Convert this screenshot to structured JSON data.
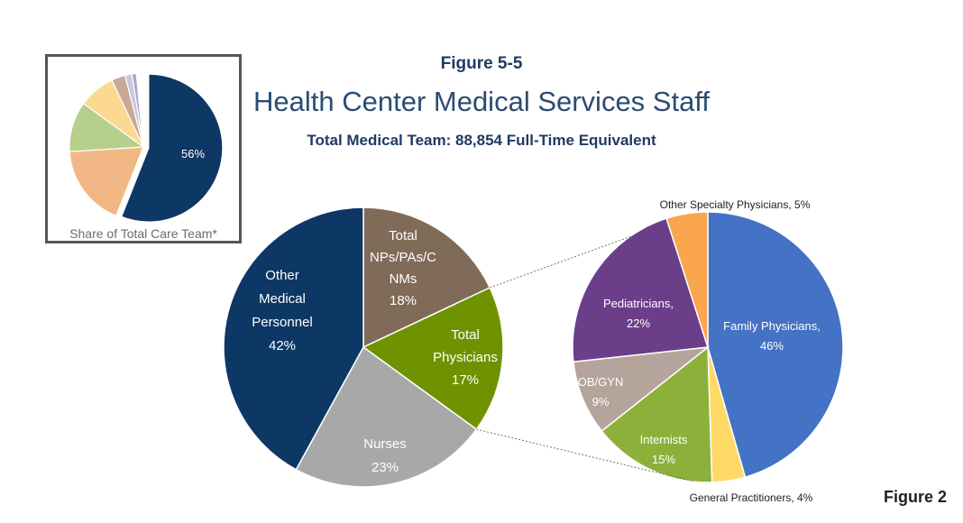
{
  "header": {
    "figure_label": "Figure 5-5",
    "title": "Health Center Medical Services Staff",
    "subtitle": "Total Medical Team: 88,854 Full-Time Equivalent"
  },
  "corner_label": "Figure 2",
  "chart_data": [
    {
      "type": "pie",
      "name": "inset",
      "caption": "Share of Total Care Team*",
      "slices": [
        {
          "value": 56,
          "label": "56%",
          "color": "#0d3764"
        },
        {
          "value": 18,
          "label": "",
          "color": "#f1b885"
        },
        {
          "value": 11,
          "label": "",
          "color": "#b6cf8c"
        },
        {
          "value": 8,
          "label": "",
          "color": "#fbd991"
        },
        {
          "value": 3,
          "label": "",
          "color": "#c9a896"
        },
        {
          "value": 1.5,
          "label": "",
          "color": "#c8c8d8"
        },
        {
          "value": 1,
          "label": "",
          "color": "#a9a9c9"
        },
        {
          "value": 1.5,
          "label": "",
          "color": "#ffffff"
        }
      ]
    },
    {
      "type": "pie",
      "name": "total-medical-team",
      "slices": [
        {
          "label": "Total NPs/PAs/CNMs",
          "lines": [
            "Total",
            "NPs/PAs/C",
            "NMs",
            "18%"
          ],
          "value": 18,
          "color": "#806a58"
        },
        {
          "label": "Total Physicians",
          "lines": [
            "Total",
            "Physicians",
            "17%"
          ],
          "value": 17,
          "color": "#6f9300"
        },
        {
          "label": "Nurses",
          "lines": [
            "Nurses",
            "23%"
          ],
          "value": 23,
          "color": "#a8a8a8"
        },
        {
          "label": "Other Medical Personnel",
          "lines": [
            "Other",
            "Medical",
            "Personnel",
            "42%"
          ],
          "value": 42,
          "color": "#0d3764"
        }
      ]
    },
    {
      "type": "pie",
      "name": "physicians-breakdown",
      "slices": [
        {
          "label": "Family Physicians, 46%",
          "lines": [
            "Family Physicians,",
            "46%"
          ],
          "value": 46,
          "color": "#4472c4"
        },
        {
          "label": "General Practitioners, 4%",
          "lines": [
            "General Practitioners, 4%"
          ],
          "value": 4,
          "color": "#ffd966"
        },
        {
          "label": "Internists",
          "lines": [
            "Internists",
            "15%"
          ],
          "value": 15,
          "color": "#8db03b"
        },
        {
          "label": "OB/GYN",
          "lines": [
            "OB/GYN",
            "9%"
          ],
          "value": 9,
          "color": "#b5a49b"
        },
        {
          "label": "Pediatricians",
          "lines": [
            "Pediatricians,",
            "22%"
          ],
          "value": 22,
          "color": "#6b3e8a"
        },
        {
          "label": "Other Specialty Physicians, 5%",
          "lines": [
            "Other Specialty Physicians, 5%"
          ],
          "value": 5,
          "color": "#f9a64f"
        }
      ]
    }
  ]
}
